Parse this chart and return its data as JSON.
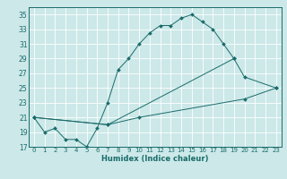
{
  "title": "",
  "xlabel": "Humidex (Indice chaleur)",
  "bg_color": "#cce8e8",
  "grid_color": "#ffffff",
  "line_color": "#1a6b6b",
  "xlim": [
    -0.5,
    23.5
  ],
  "ylim": [
    17,
    36
  ],
  "xticks": [
    0,
    1,
    2,
    3,
    4,
    5,
    6,
    7,
    8,
    9,
    10,
    11,
    12,
    13,
    14,
    15,
    16,
    17,
    18,
    19,
    20,
    21,
    22,
    23
  ],
  "yticks": [
    17,
    19,
    21,
    23,
    25,
    27,
    29,
    31,
    33,
    35
  ],
  "line1_x": [
    0,
    1,
    2,
    3,
    4,
    5,
    6,
    7,
    8,
    9,
    10,
    11,
    12,
    13,
    14,
    15,
    16,
    17,
    18,
    19
  ],
  "line1_y": [
    21,
    19,
    19.5,
    18,
    18,
    17,
    19.5,
    23,
    27.5,
    29,
    31,
    32.5,
    33.5,
    33.5,
    34.5,
    35,
    34,
    33,
    31,
    29
  ],
  "line2_x": [
    0,
    7,
    19,
    20,
    23
  ],
  "line2_y": [
    21,
    20,
    29,
    26.5,
    25
  ],
  "line3_x": [
    0,
    7,
    10,
    20,
    23
  ],
  "line3_y": [
    21,
    20,
    21,
    23.5,
    25
  ]
}
